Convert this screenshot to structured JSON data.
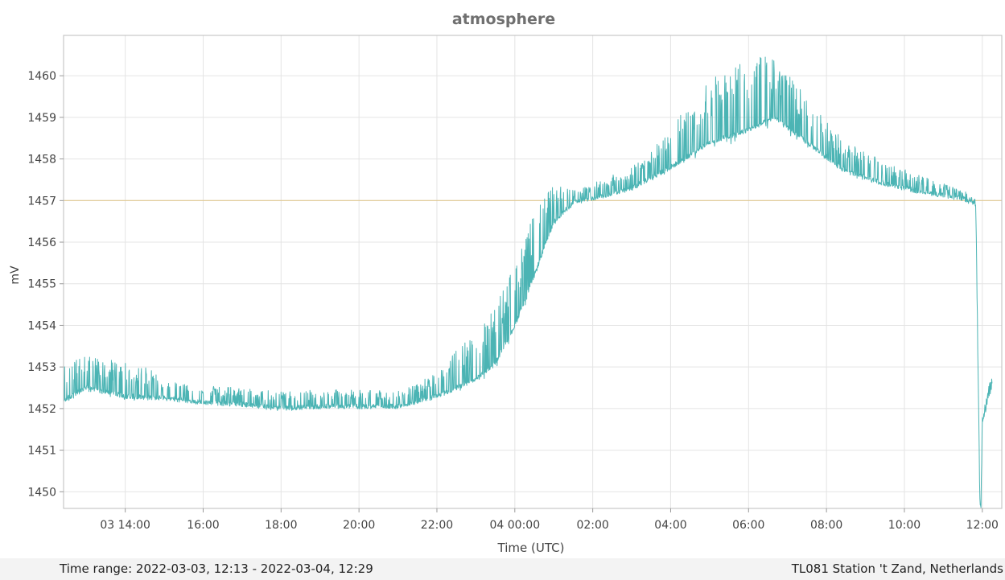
{
  "chart_data": {
    "type": "line",
    "title": "atmosphere",
    "xlabel": "Time (UTC)",
    "ylabel": "mV",
    "ylim": [
      1449.6,
      1460.97
    ],
    "xlim": [
      "2022-03-03 12:25",
      "2022-03-04 12:30"
    ],
    "y_ticks": [
      1450,
      1451,
      1452,
      1453,
      1454,
      1455,
      1456,
      1457,
      1458,
      1459,
      1460
    ],
    "x_ticks": [
      {
        "t": "2022-03-03 14:00",
        "label": "03 14:00"
      },
      {
        "t": "2022-03-03 16:00",
        "label": "16:00"
      },
      {
        "t": "2022-03-03 18:00",
        "label": "18:00"
      },
      {
        "t": "2022-03-03 20:00",
        "label": "20:00"
      },
      {
        "t": "2022-03-03 22:00",
        "label": "22:00"
      },
      {
        "t": "2022-03-04 00:00",
        "label": "04 00:00"
      },
      {
        "t": "2022-03-04 02:00",
        "label": "02:00"
      },
      {
        "t": "2022-03-04 04:00",
        "label": "04:00"
      },
      {
        "t": "2022-03-04 06:00",
        "label": "06:00"
      },
      {
        "t": "2022-03-04 08:00",
        "label": "08:00"
      },
      {
        "t": "2022-03-04 10:00",
        "label": "10:00"
      },
      {
        "t": "2022-03-04 12:00",
        "label": "12:00"
      }
    ],
    "reference_line": {
      "y": 1457,
      "color": "#e0c890"
    },
    "grid": true,
    "series": [
      {
        "color": "#4bb4b4",
        "points": [
          [
            "2022-03-03 12:25",
            1452.2
          ],
          [
            "2022-03-03 13:00",
            1452.5
          ],
          [
            "2022-03-03 13:30",
            1452.4
          ],
          [
            "2022-03-03 14:00",
            1452.3
          ],
          [
            "2022-03-03 15:00",
            1452.25
          ],
          [
            "2022-03-03 16:00",
            1452.15
          ],
          [
            "2022-03-03 17:00",
            1452.1
          ],
          [
            "2022-03-03 18:00",
            1452.0
          ],
          [
            "2022-03-03 19:00",
            1452.05
          ],
          [
            "2022-03-03 20:00",
            1452.05
          ],
          [
            "2022-03-03 21:00",
            1452.05
          ],
          [
            "2022-03-03 22:00",
            1452.3
          ],
          [
            "2022-03-03 23:00",
            1452.7
          ],
          [
            "2022-03-03 23:30",
            1453.1
          ],
          [
            "2022-03-04 00:00",
            1454.0
          ],
          [
            "2022-03-04 00:30",
            1455.2
          ],
          [
            "2022-03-04 01:00",
            1456.5
          ],
          [
            "2022-03-04 01:30",
            1456.95
          ],
          [
            "2022-03-04 02:00",
            1457.05
          ],
          [
            "2022-03-04 03:00",
            1457.3
          ],
          [
            "2022-03-04 04:00",
            1457.8
          ],
          [
            "2022-03-04 05:00",
            1458.4
          ],
          [
            "2022-03-04 06:00",
            1458.7
          ],
          [
            "2022-03-04 06:40",
            1459.0
          ],
          [
            "2022-03-04 07:30",
            1458.4
          ],
          [
            "2022-03-04 08:30",
            1457.7
          ],
          [
            "2022-03-04 09:30",
            1457.4
          ],
          [
            "2022-03-04 10:30",
            1457.2
          ],
          [
            "2022-03-04 11:30",
            1457.05
          ],
          [
            "2022-03-04 11:50",
            1456.9
          ],
          [
            "2022-03-04 11:53",
            1453.5
          ],
          [
            "2022-03-04 11:56",
            1450.0
          ],
          [
            "2022-03-04 11:58",
            1449.6
          ],
          [
            "2022-03-04 12:00",
            1451.8
          ],
          [
            "2022-03-04 12:05",
            1452.0
          ],
          [
            "2022-03-04 12:10",
            1452.4
          ],
          [
            "2022-03-04 12:15",
            1452.6
          ]
        ],
        "spike_amplitude": [
          [
            "2022-03-03 12:25",
            0.8
          ],
          [
            "2022-03-03 14:30",
            0.8
          ],
          [
            "2022-03-03 15:00",
            0.4
          ],
          [
            "2022-03-03 21:30",
            0.4
          ],
          [
            "2022-03-03 23:30",
            1.4
          ],
          [
            "2022-03-04 00:30",
            1.5
          ],
          [
            "2022-03-04 01:30",
            0.3
          ],
          [
            "2022-03-04 03:00",
            0.5
          ],
          [
            "2022-03-04 05:00",
            1.5
          ],
          [
            "2022-03-04 06:00",
            1.8
          ],
          [
            "2022-03-04 07:00",
            1.3
          ],
          [
            "2022-03-04 08:30",
            0.7
          ],
          [
            "2022-03-04 11:30",
            0.2
          ],
          [
            "2022-03-04 12:30",
            0.2
          ]
        ]
      }
    ]
  },
  "footer": {
    "time_range": "Time range:   2022-03-03, 12:13 - 2022-03-04, 12:29",
    "station": "TL081 Station 't Zand, Netherlands"
  }
}
